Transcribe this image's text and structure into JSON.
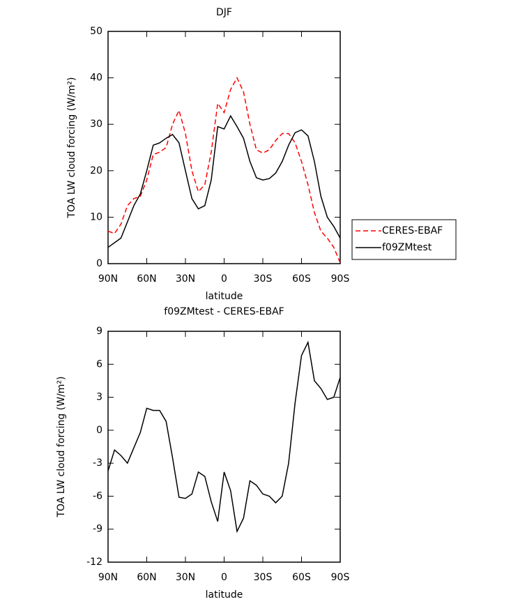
{
  "chart_data": [
    {
      "type": "line",
      "title": "DJF",
      "xlabel": "latitude",
      "ylabel": "TOA LW cloud forcing (W/m²)",
      "x": [
        90,
        85,
        80,
        75,
        70,
        65,
        60,
        55,
        50,
        45,
        40,
        35,
        30,
        25,
        20,
        15,
        10,
        5,
        0,
        -5,
        -10,
        -15,
        -20,
        -25,
        -30,
        -35,
        -40,
        -45,
        -50,
        -55,
        -60,
        -65,
        -70,
        -75,
        -80,
        -85,
        -90
      ],
      "series": [
        {
          "name": "CERES-EBAF",
          "color": "#ff0000",
          "dash": "dashed",
          "values": [
            7,
            6.5,
            8.5,
            12.5,
            14,
            14.5,
            18,
            23.5,
            24,
            25,
            30,
            33,
            28,
            20,
            15.5,
            17,
            24,
            34.5,
            32.5,
            37.5,
            40,
            37,
            30,
            24.5,
            23.8,
            24.5,
            26.5,
            28,
            28,
            26,
            22,
            17,
            11,
            7,
            5.5,
            3.5,
            0.2
          ]
        },
        {
          "name": "f09ZMtest",
          "color": "#000000",
          "dash": "solid",
          "values": [
            3.5,
            4.5,
            5.5,
            9,
            12.5,
            15,
            20,
            25.5,
            26,
            27,
            27.8,
            26,
            20,
            14,
            11.8,
            12.5,
            18,
            29.5,
            29,
            31.8,
            29.5,
            27,
            22,
            18.5,
            18,
            18.3,
            19.5,
            22,
            25.5,
            28.2,
            28.8,
            27.5,
            22,
            14.5,
            10,
            8,
            5.5
          ]
        }
      ],
      "xlim": [
        90,
        -90
      ],
      "xticks": [
        {
          "value": 90,
          "label": "90N"
        },
        {
          "value": 60,
          "label": "60N"
        },
        {
          "value": 30,
          "label": "30N"
        },
        0,
        {
          "value": -30,
          "label": "30S"
        },
        {
          "value": -60,
          "label": "60S"
        },
        {
          "value": -90,
          "label": "90S"
        }
      ],
      "ylim": [
        0,
        50
      ],
      "yticks": [
        0,
        10,
        20,
        30,
        40,
        50
      ],
      "legend": "right"
    },
    {
      "type": "line",
      "title": "f09ZMtest - CERES-EBAF",
      "xlabel": "latitude",
      "ylabel": "TOA LW cloud forcing (W/m²)",
      "x": [
        90,
        85,
        80,
        75,
        70,
        65,
        60,
        55,
        50,
        45,
        40,
        35,
        30,
        25,
        20,
        15,
        10,
        5,
        0,
        -5,
        -10,
        -15,
        -20,
        -25,
        -30,
        -35,
        -40,
        -45,
        -50,
        -55,
        -60,
        -65,
        -70,
        -75,
        -80,
        -85,
        -90
      ],
      "series": [
        {
          "color": "#000000",
          "dash": "solid",
          "values": [
            -3.7,
            -1.8,
            -2.3,
            -3.0,
            -1.6,
            -0.2,
            2.0,
            1.8,
            1.8,
            0.8,
            -2.5,
            -6.1,
            -6.2,
            -5.8,
            -3.8,
            -4.2,
            -6.5,
            -8.3,
            -3.8,
            -5.5,
            -9.2,
            -8.0,
            -4.6,
            -5.0,
            -5.8,
            -6.0,
            -6.6,
            -6.0,
            -3.0,
            2.5,
            6.8,
            8.0,
            4.5,
            3.8,
            2.8,
            3.0,
            4.8
          ]
        }
      ],
      "xlim": [
        90,
        -90
      ],
      "xticks": [
        {
          "value": 90,
          "label": "90N"
        },
        {
          "value": 60,
          "label": "60N"
        },
        {
          "value": 30,
          "label": "30N"
        },
        0,
        {
          "value": -30,
          "label": "30S"
        },
        {
          "value": -60,
          "label": "60S"
        },
        {
          "value": -90,
          "label": "90S"
        }
      ],
      "ylim": [
        -12,
        9
      ],
      "yticks": [
        -12,
        -9,
        -6,
        -3,
        0,
        3,
        6,
        9
      ]
    }
  ]
}
